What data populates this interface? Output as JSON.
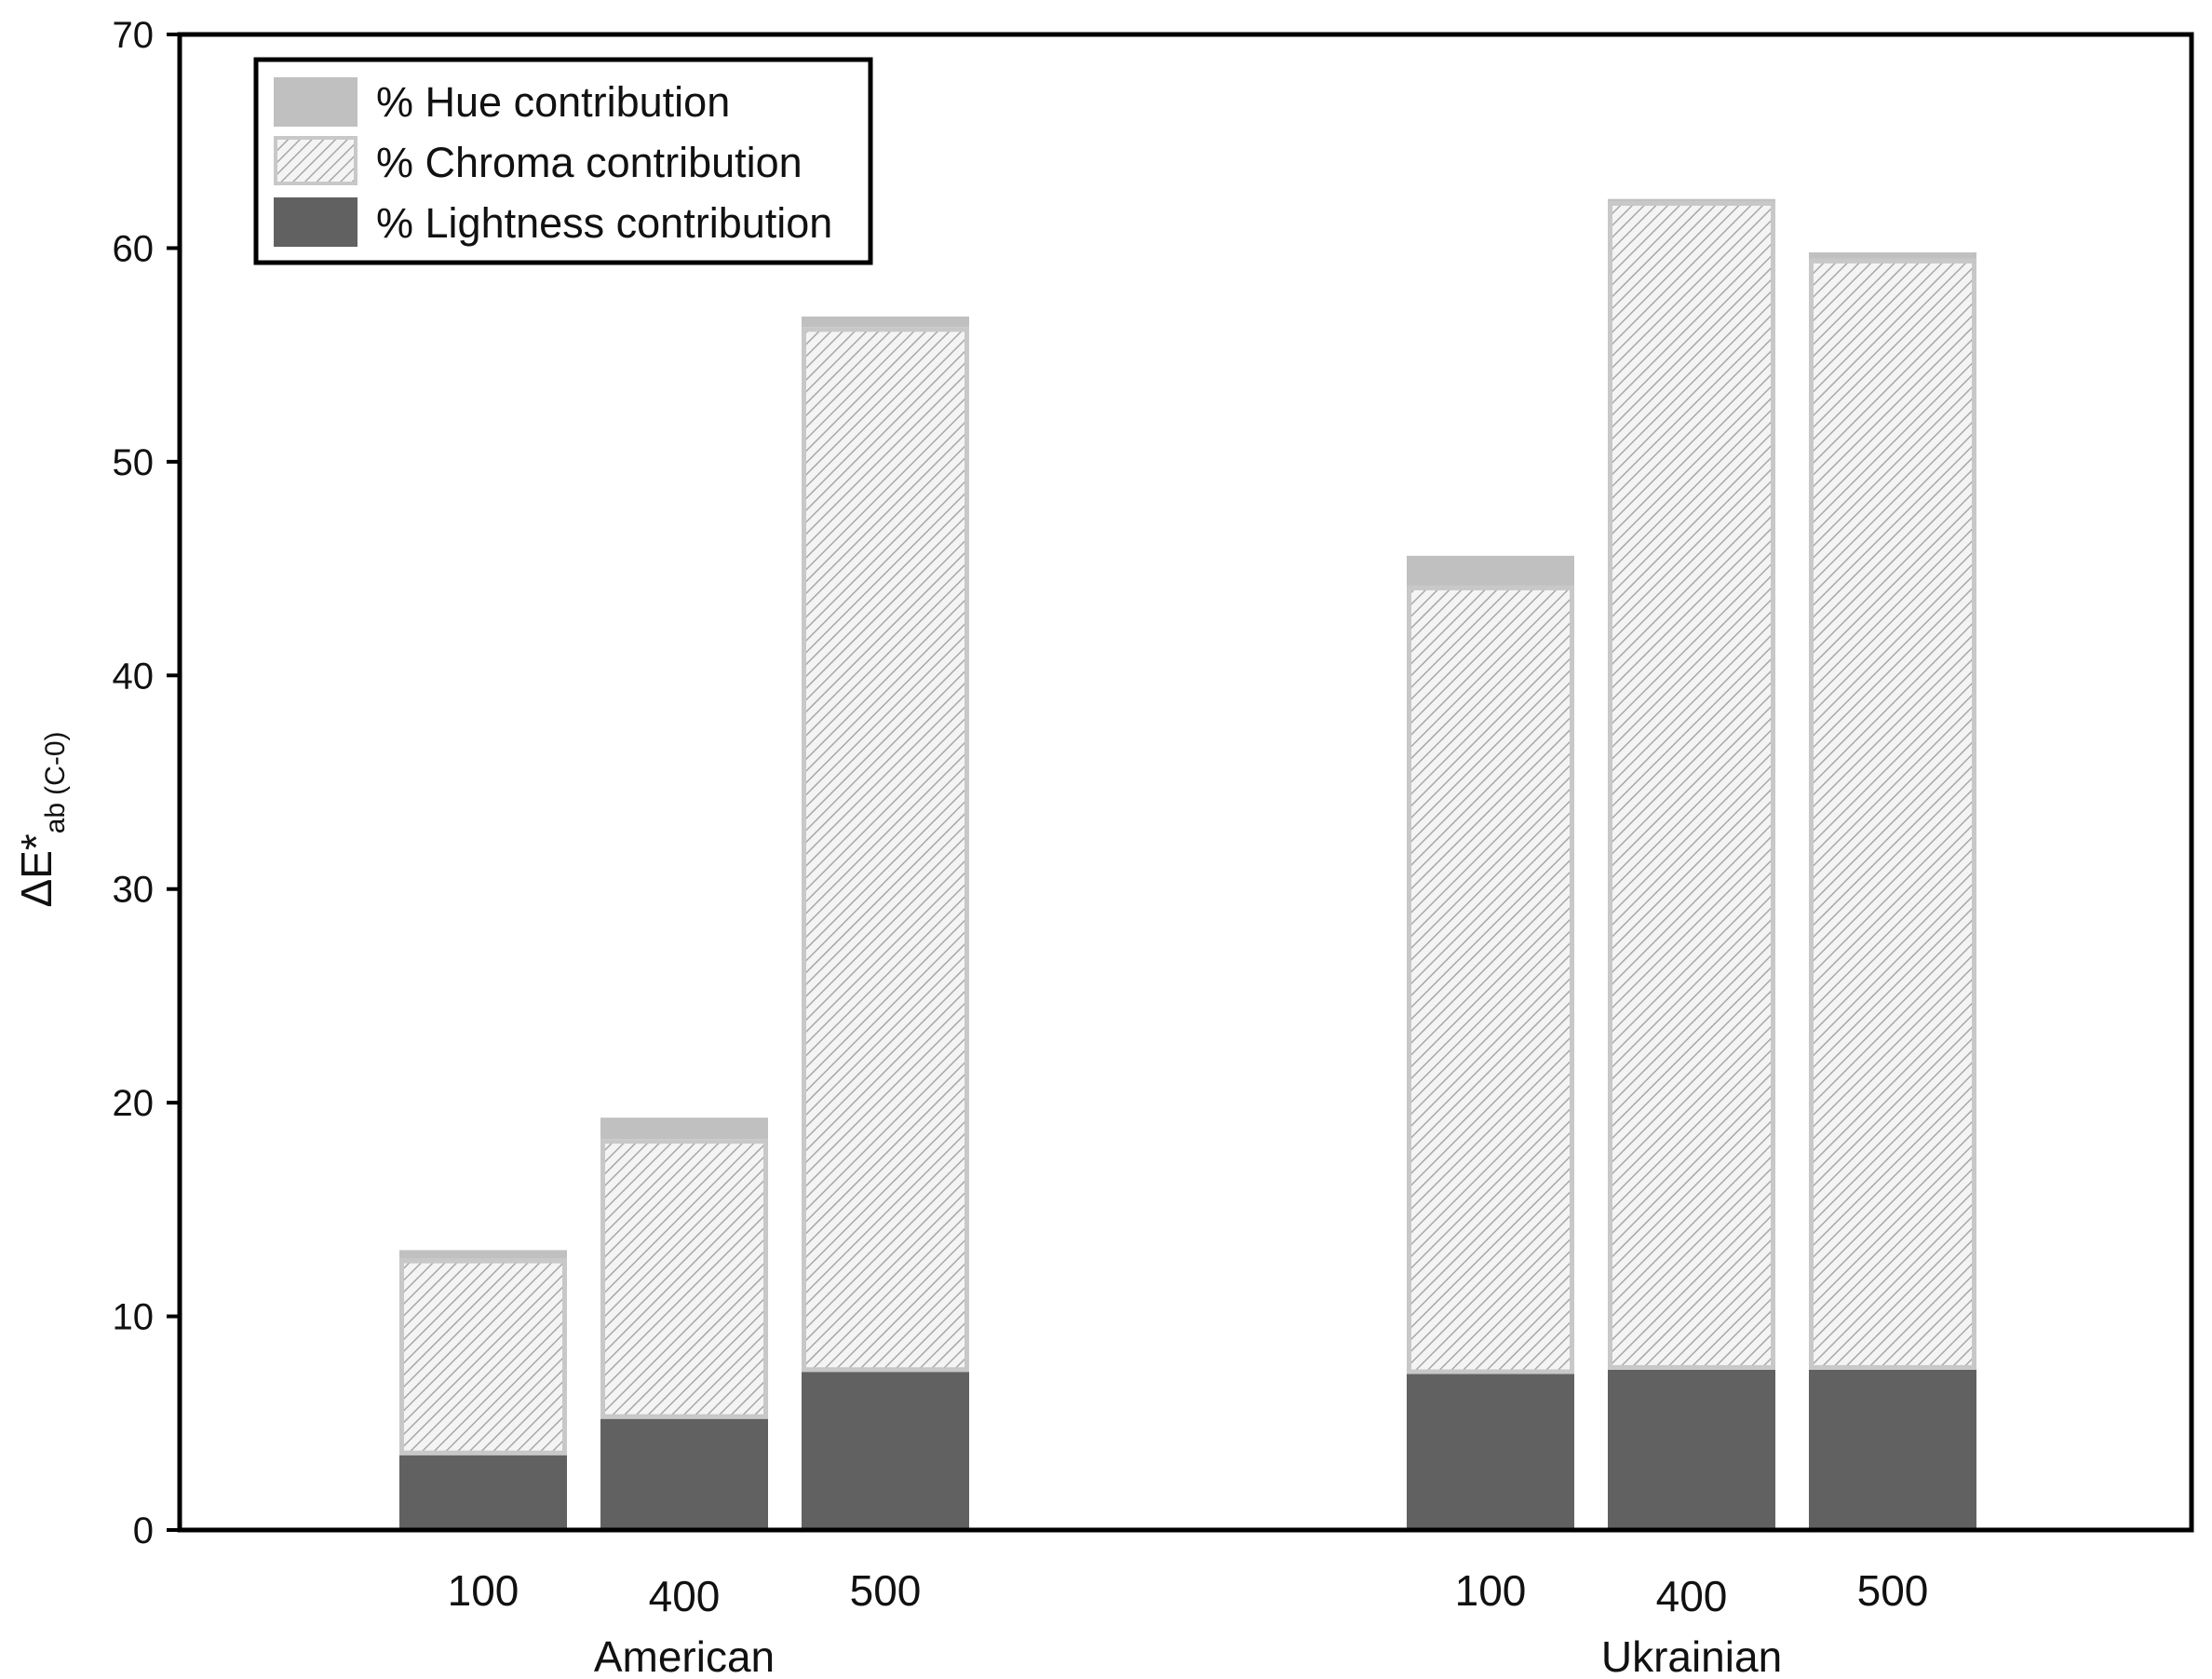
{
  "chart_data": {
    "type": "bar",
    "stacked": true,
    "groups": [
      {
        "label": "American",
        "categories": [
          "100",
          "400",
          "500"
        ]
      },
      {
        "label": "Ukrainian",
        "categories": [
          "100",
          "400",
          "500"
        ]
      }
    ],
    "series": [
      {
        "name": "% Lightness contribution",
        "color": "#616161",
        "fill": "solid",
        "values": [
          3.5,
          5.2,
          7.4,
          7.3,
          7.5,
          7.5
        ]
      },
      {
        "name": "% Chroma contribution",
        "color": "#c8c8c8",
        "fill": "hatched",
        "values": [
          9.2,
          13.1,
          48.9,
          36.9,
          54.7,
          52.0
        ]
      },
      {
        "name": "% Hue contribution",
        "color": "#c0c0c0",
        "fill": "solid",
        "values": [
          0.4,
          1.0,
          0.5,
          1.4,
          0.1,
          0.3
        ]
      }
    ],
    "ylabel": {
      "main": "ΔE*",
      "sub": "ab",
      "suffix": "(C-0)"
    },
    "ylim": [
      0,
      70
    ],
    "yticks": [
      0,
      10,
      20,
      30,
      40,
      50,
      60,
      70
    ],
    "ytick_labels": [
      "0",
      "10",
      "20",
      "30",
      "40",
      "50",
      "60",
      "70"
    ],
    "legend": {
      "placement": "top-left",
      "entries": [
        "% Hue contribution",
        "% Chroma contribution",
        "% Lightness contribution"
      ]
    },
    "grid": false
  }
}
